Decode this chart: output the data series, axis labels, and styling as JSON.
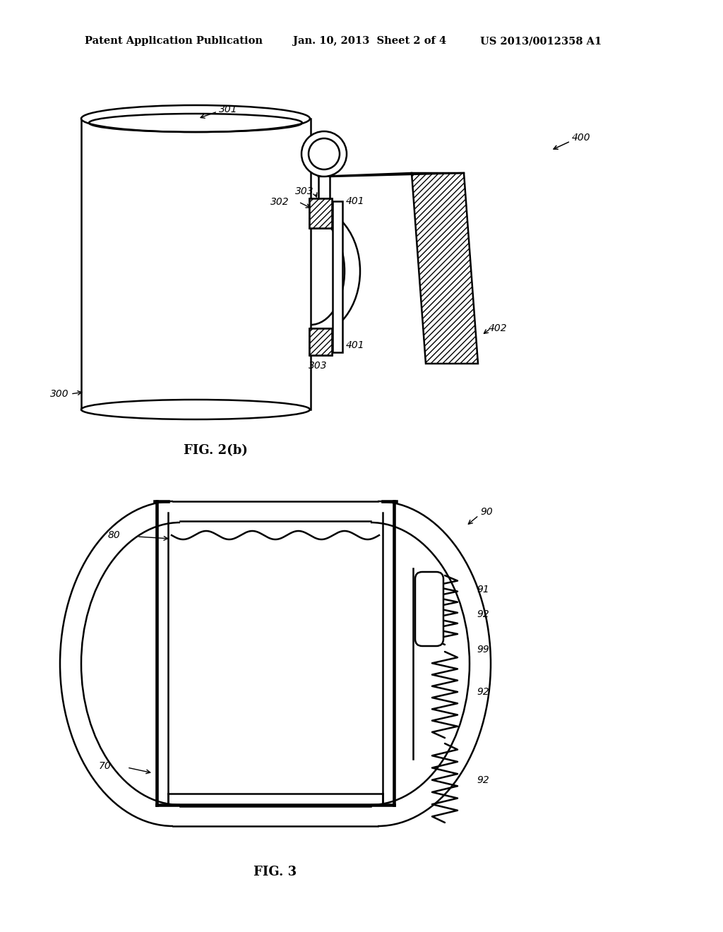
{
  "header_left": "Patent Application Publication",
  "header_mid": "Jan. 10, 2013  Sheet 2 of 4",
  "header_right": "US 2013/0012358 A1",
  "fig2b_caption": "FIG. 2(b)",
  "fig3_caption": "FIG. 3",
  "bg_color": "#ffffff",
  "line_color": "#000000"
}
